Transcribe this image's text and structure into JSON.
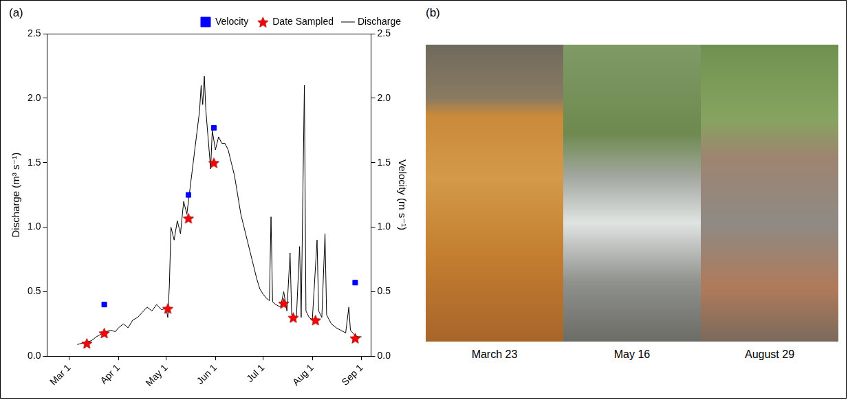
{
  "chart_data": {
    "type": "line",
    "panel": "(a)",
    "y_label": "Discharge (m³ s⁻¹)",
    "y2_label": "Velocity (m s⁻¹)",
    "xlim": [
      -14,
      190
    ],
    "xticks": [
      {
        "value": 0,
        "label": "Mar 1"
      },
      {
        "value": 31,
        "label": "Apr 1"
      },
      {
        "value": 61,
        "label": "May 1"
      },
      {
        "value": 92,
        "label": "Jun 1"
      },
      {
        "value": 122,
        "label": "Jul 1"
      },
      {
        "value": 153,
        "label": "Aug 1"
      },
      {
        "value": 184,
        "label": "Sep 1"
      }
    ],
    "ylim": [
      0,
      2.5
    ],
    "yticks": [
      {
        "value": 0,
        "label": "0.0"
      },
      0.5,
      {
        "value": 1,
        "label": "1.0"
      },
      1.5,
      {
        "value": 2,
        "label": "2.0"
      },
      2.5
    ],
    "y2lim": [
      0,
      2.5
    ],
    "y2ticks": [
      {
        "value": 0,
        "label": "0.0"
      },
      0.5,
      {
        "value": 1,
        "label": "1.0"
      },
      1.5,
      {
        "value": 2,
        "label": "2.0"
      },
      2.5
    ],
    "grid": false,
    "legend": "top",
    "series": [
      {
        "name": "Discharge",
        "type": "line",
        "color": "#000000",
        "line_style": "solid",
        "x": [
          5,
          8,
          11,
          14,
          17,
          20,
          23,
          26,
          29,
          31,
          34,
          37,
          40,
          43,
          46,
          49,
          52,
          55,
          58,
          61,
          62,
          63,
          64,
          66,
          68,
          70,
          72,
          74,
          76,
          78,
          80,
          82,
          83,
          84,
          85,
          86,
          88,
          89,
          90,
          92,
          94,
          96,
          98,
          100,
          102,
          104,
          106,
          108,
          110,
          112,
          114,
          116,
          118,
          120,
          122,
          124,
          126,
          127,
          128,
          130,
          133,
          135,
          137,
          139,
          140,
          143,
          145,
          146,
          148,
          149,
          151,
          153,
          156,
          157,
          159,
          161,
          162,
          165,
          168,
          171,
          174,
          176,
          177,
          180,
          182,
          184
        ],
        "values": [
          0.09,
          0.1,
          0.11,
          0.12,
          0.15,
          0.17,
          0.19,
          0.2,
          0.19,
          0.22,
          0.25,
          0.22,
          0.28,
          0.3,
          0.34,
          0.38,
          0.35,
          0.4,
          0.36,
          0.37,
          0.3,
          0.55,
          1.0,
          0.9,
          1.05,
          0.95,
          1.2,
          1.1,
          1.3,
          1.5,
          1.7,
          1.9,
          2.1,
          1.95,
          2.17,
          1.9,
          1.6,
          1.45,
          1.75,
          1.6,
          1.7,
          1.65,
          1.65,
          1.6,
          1.5,
          1.4,
          1.25,
          1.1,
          1.0,
          0.9,
          0.8,
          0.7,
          0.6,
          0.52,
          0.48,
          0.45,
          0.43,
          1.08,
          0.42,
          0.4,
          0.38,
          0.5,
          0.35,
          0.8,
          0.32,
          0.3,
          0.85,
          0.3,
          2.1,
          0.35,
          0.3,
          0.28,
          0.9,
          0.35,
          0.3,
          0.95,
          0.32,
          0.25,
          0.22,
          0.2,
          0.18,
          0.38,
          0.2,
          0.16,
          0.15,
          0.15
        ]
      },
      {
        "name": "Velocity",
        "type": "scatter",
        "color": "#0000ff",
        "marker": "square",
        "axis": "y2",
        "x": [
          22,
          75,
          91,
          180
        ],
        "values": [
          0.4,
          1.25,
          1.77,
          0.57
        ]
      },
      {
        "name": "Date Sampled",
        "type": "scatter",
        "color": "#ff0000",
        "marker": "star",
        "x": [
          11,
          22,
          62,
          75,
          91,
          135,
          141,
          155,
          180
        ],
        "values": [
          0.1,
          0.18,
          0.37,
          1.07,
          1.5,
          0.41,
          0.3,
          0.28,
          0.14
        ]
      }
    ]
  },
  "photos": {
    "panel": "(b)",
    "captions": [
      "March 23",
      "May 16",
      "August 29"
    ]
  }
}
